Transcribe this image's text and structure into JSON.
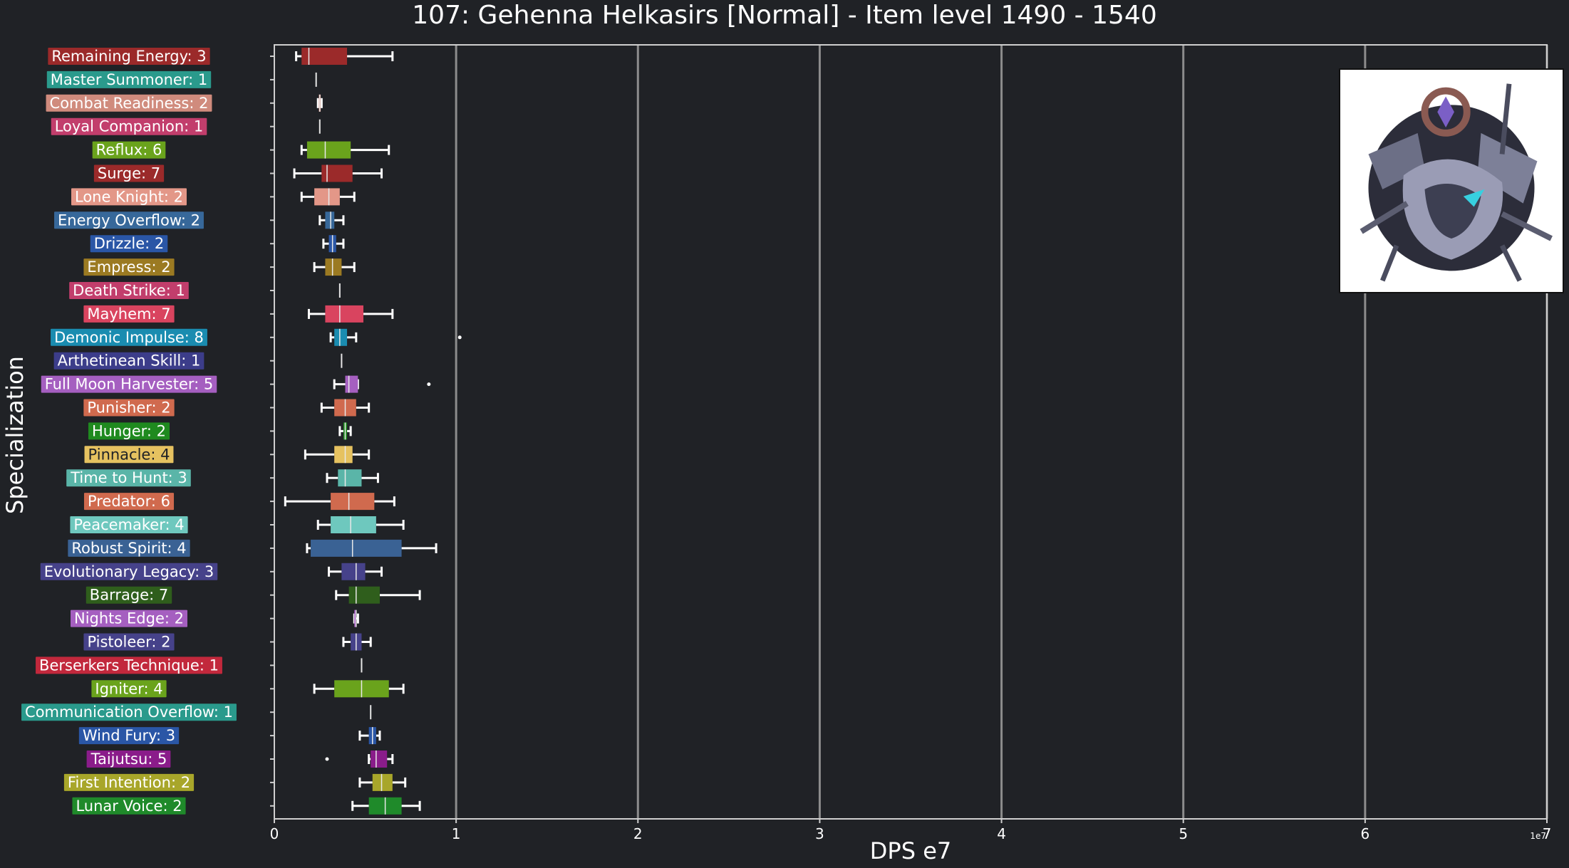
{
  "chart_data": {
    "type": "box",
    "orientation": "horizontal",
    "title": "107: Gehenna Helkasirs [Normal] - Item level 1490 - 1540",
    "xlabel": "DPS e7",
    "ylabel": "Specialization",
    "x_offset_text": "1e7",
    "xlim": [
      0,
      7
    ],
    "xticks": [
      0,
      1,
      2,
      3,
      4,
      5,
      6,
      7
    ],
    "grid": "vertical",
    "units": "1e7 DPS",
    "series": [
      {
        "label": "Remaining Energy: 3",
        "color": "#9b2a2a",
        "whislo": 0.12,
        "q1": 0.15,
        "med": 0.19,
        "q3": 0.4,
        "whishi": 0.65,
        "fliers": []
      },
      {
        "label": "Master Summoner: 1",
        "color": "#2a9a8c",
        "whislo": 0.23,
        "q1": 0.23,
        "med": 0.23,
        "q3": 0.23,
        "whishi": 0.23,
        "fliers": []
      },
      {
        "label": "Combat Readiness: 2",
        "color": "#d08b7d",
        "whislo": 0.24,
        "q1": 0.245,
        "med": 0.25,
        "q3": 0.255,
        "whishi": 0.26,
        "fliers": []
      },
      {
        "label": "Loyal Companion: 1",
        "color": "#c23e6c",
        "whislo": 0.25,
        "q1": 0.25,
        "med": 0.25,
        "q3": 0.25,
        "whishi": 0.25,
        "fliers": []
      },
      {
        "label": "Reflux: 6",
        "color": "#6aa31c",
        "whislo": 0.15,
        "q1": 0.18,
        "med": 0.28,
        "q3": 0.42,
        "whishi": 0.63,
        "fliers": []
      },
      {
        "label": "Surge: 7",
        "color": "#9b2a2a",
        "whislo": 0.11,
        "q1": 0.26,
        "med": 0.29,
        "q3": 0.43,
        "whishi": 0.59,
        "fliers": []
      },
      {
        "label": "Lone Knight: 2",
        "color": "#e39788",
        "whislo": 0.15,
        "q1": 0.22,
        "med": 0.3,
        "q3": 0.36,
        "whishi": 0.44,
        "fliers": []
      },
      {
        "label": "Energy Overflow: 2",
        "color": "#37689a",
        "whislo": 0.25,
        "q1": 0.28,
        "med": 0.31,
        "q3": 0.33,
        "whishi": 0.38,
        "fliers": []
      },
      {
        "label": "Drizzle: 2",
        "color": "#2a56a6",
        "whislo": 0.27,
        "q1": 0.3,
        "med": 0.32,
        "q3": 0.34,
        "whishi": 0.38,
        "fliers": []
      },
      {
        "label": "Empress: 2",
        "color": "#9b7a22",
        "whislo": 0.22,
        "q1": 0.28,
        "med": 0.32,
        "q3": 0.37,
        "whishi": 0.44,
        "fliers": []
      },
      {
        "label": "Death Strike: 1",
        "color": "#c23e6c",
        "whislo": 0.36,
        "q1": 0.36,
        "med": 0.36,
        "q3": 0.36,
        "whishi": 0.36,
        "fliers": []
      },
      {
        "label": "Mayhem: 7",
        "color": "#d9445f",
        "whislo": 0.19,
        "q1": 0.28,
        "med": 0.36,
        "q3": 0.49,
        "whishi": 0.65,
        "fliers": []
      },
      {
        "label": "Demonic Impulse: 8",
        "color": "#1a8cb0",
        "whislo": 0.31,
        "q1": 0.33,
        "med": 0.36,
        "q3": 0.4,
        "whishi": 0.45,
        "fliers": [
          1.02
        ]
      },
      {
        "label": "Arthetinean Skill: 1",
        "color": "#3c3d8a",
        "whislo": 0.37,
        "q1": 0.37,
        "med": 0.37,
        "q3": 0.37,
        "whishi": 0.37,
        "fliers": []
      },
      {
        "label": "Full Moon Harvester: 5",
        "color": "#a55fc0",
        "whislo": 0.33,
        "q1": 0.39,
        "med": 0.41,
        "q3": 0.46,
        "whishi": 0.46,
        "fliers": [
          0.85
        ]
      },
      {
        "label": "Punisher: 2",
        "color": "#d06a4e",
        "whislo": 0.26,
        "q1": 0.33,
        "med": 0.39,
        "q3": 0.45,
        "whishi": 0.52,
        "fliers": []
      },
      {
        "label": "Hunger: 2",
        "color": "#1f8a1f",
        "whislo": 0.36,
        "q1": 0.38,
        "med": 0.39,
        "q3": 0.4,
        "whishi": 0.42,
        "fliers": []
      },
      {
        "label": "Pinnacle: 4",
        "color": "#e6c260",
        "whislo": 0.17,
        "q1": 0.33,
        "med": 0.39,
        "q3": 0.43,
        "whishi": 0.52,
        "fliers": []
      },
      {
        "label": "Time to Hunt: 3",
        "color": "#5ab5a8",
        "whislo": 0.29,
        "q1": 0.35,
        "med": 0.39,
        "q3": 0.48,
        "whishi": 0.57,
        "fliers": []
      },
      {
        "label": "Predator: 6",
        "color": "#d06a4e",
        "whislo": 0.06,
        "q1": 0.31,
        "med": 0.41,
        "q3": 0.55,
        "whishi": 0.66,
        "fliers": []
      },
      {
        "label": "Peacemaker: 4",
        "color": "#6ec8be",
        "whislo": 0.24,
        "q1": 0.31,
        "med": 0.42,
        "q3": 0.56,
        "whishi": 0.71,
        "fliers": []
      },
      {
        "label": "Robust Spirit: 4",
        "color": "#3a6294",
        "whislo": 0.18,
        "q1": 0.2,
        "med": 0.43,
        "q3": 0.7,
        "whishi": 0.89,
        "fliers": []
      },
      {
        "label": "Evolutionary Legacy: 3",
        "color": "#46428a",
        "whislo": 0.3,
        "q1": 0.37,
        "med": 0.45,
        "q3": 0.5,
        "whishi": 0.59,
        "fliers": []
      },
      {
        "label": "Barrage: 7",
        "color": "#2f5e1c",
        "whislo": 0.34,
        "q1": 0.41,
        "med": 0.45,
        "q3": 0.58,
        "whishi": 0.8,
        "fliers": []
      },
      {
        "label": "Nights Edge: 2",
        "color": "#a55fc0",
        "whislo": 0.44,
        "q1": 0.44,
        "med": 0.45,
        "q3": 0.45,
        "whishi": 0.46,
        "fliers": []
      },
      {
        "label": "Pistoleer: 2",
        "color": "#46428a",
        "whislo": 0.38,
        "q1": 0.42,
        "med": 0.45,
        "q3": 0.48,
        "whishi": 0.53,
        "fliers": []
      },
      {
        "label": "Berserkers Technique: 1",
        "color": "#c2283c",
        "whislo": 0.48,
        "q1": 0.48,
        "med": 0.48,
        "q3": 0.48,
        "whishi": 0.48,
        "fliers": []
      },
      {
        "label": "Igniter: 4",
        "color": "#6aa31c",
        "whislo": 0.22,
        "q1": 0.33,
        "med": 0.48,
        "q3": 0.63,
        "whishi": 0.71,
        "fliers": []
      },
      {
        "label": "Communication Overflow: 1",
        "color": "#2a9a8c",
        "whislo": 0.53,
        "q1": 0.53,
        "med": 0.53,
        "q3": 0.53,
        "whishi": 0.53,
        "fliers": []
      },
      {
        "label": "Wind Fury: 3",
        "color": "#2a56a6",
        "whislo": 0.47,
        "q1": 0.52,
        "med": 0.54,
        "q3": 0.56,
        "whishi": 0.58,
        "fliers": []
      },
      {
        "label": "Taijutsu: 5",
        "color": "#8a1c8a",
        "whislo": 0.52,
        "q1": 0.53,
        "med": 0.56,
        "q3": 0.62,
        "whishi": 0.65,
        "fliers": [
          0.29
        ]
      },
      {
        "label": "First Intention: 2",
        "color": "#a8a62a",
        "whislo": 0.47,
        "q1": 0.54,
        "med": 0.59,
        "q3": 0.65,
        "whishi": 0.72,
        "fliers": []
      },
      {
        "label": "Lunar Voice: 2",
        "color": "#1f8a2a",
        "whislo": 0.43,
        "q1": 0.52,
        "med": 0.61,
        "q3": 0.7,
        "whishi": 0.8,
        "fliers": []
      }
    ]
  },
  "portrait": {
    "icon": "boss-portrait-icon"
  }
}
